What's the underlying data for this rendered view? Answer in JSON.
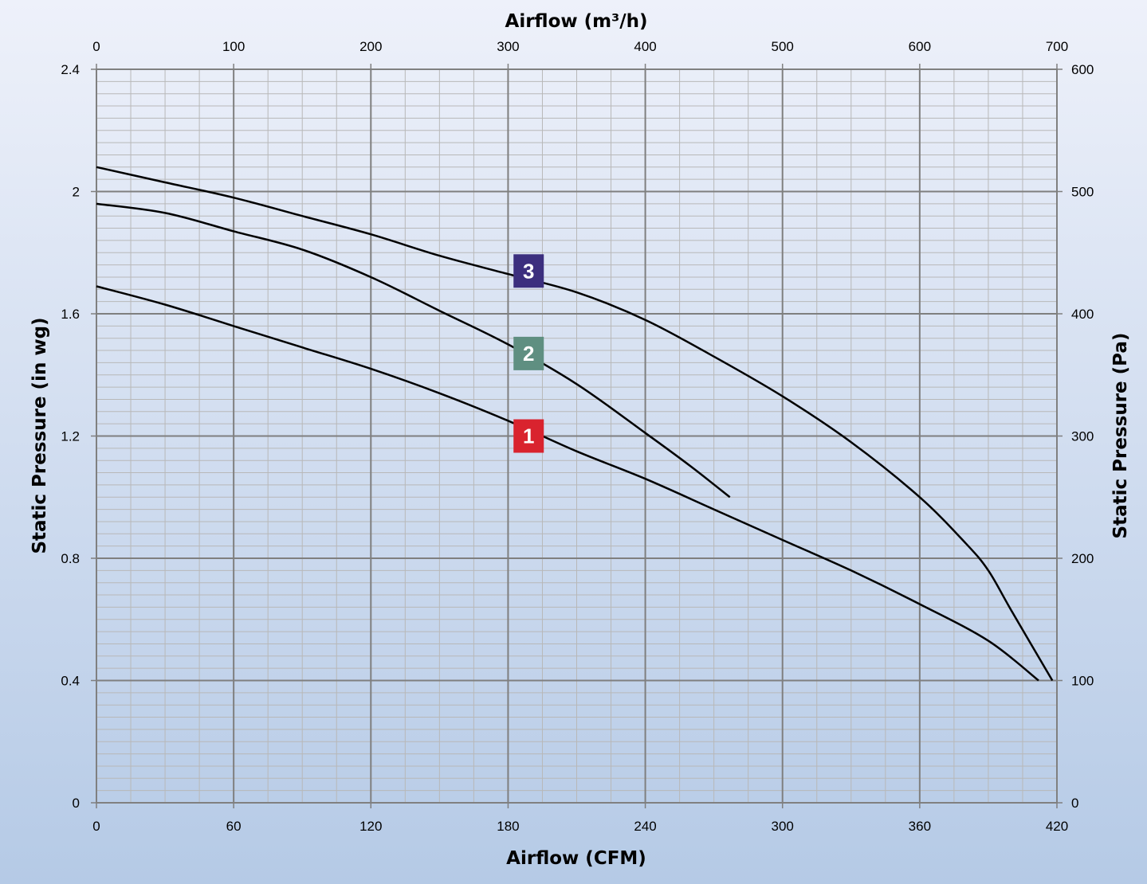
{
  "chart_data": {
    "type": "line",
    "title": "",
    "xlabel": "Airflow (CFM)",
    "x2label": "Airflow (m³/h)",
    "ylabel": "Static Pressure (in wg)",
    "y2label": "Static Pressure (Pa)",
    "xlim": [
      0,
      420
    ],
    "ylim": [
      0,
      2.4
    ],
    "x2lim": [
      0,
      700
    ],
    "y2lim": [
      0,
      600
    ],
    "xticks": [
      0,
      60,
      120,
      180,
      240,
      300,
      360,
      420
    ],
    "yticks": [
      0,
      0.4,
      0.8,
      1.2,
      1.6,
      2,
      2.4
    ],
    "x2ticks": [
      0,
      100,
      200,
      300,
      400,
      500,
      600,
      700
    ],
    "y2ticks": [
      0,
      100,
      200,
      300,
      400,
      500,
      600
    ],
    "grid": true,
    "line_color": "#000000",
    "background_colors": [
      "#eef1fa",
      "#b5cae6"
    ],
    "series": [
      {
        "label": "1",
        "badge_color": "#d9232e",
        "badge_at": [
          189,
          1.2
        ],
        "x": [
          0,
          30,
          60,
          90,
          120,
          150,
          180,
          210,
          240,
          270,
          300,
          330,
          360,
          390,
          412
        ],
        "y": [
          1.69,
          1.63,
          1.56,
          1.49,
          1.42,
          1.34,
          1.25,
          1.15,
          1.06,
          0.96,
          0.86,
          0.76,
          0.65,
          0.53,
          0.4
        ]
      },
      {
        "label": "2",
        "badge_color": "#5f8f81",
        "badge_at": [
          189,
          1.47
        ],
        "x": [
          0,
          30,
          60,
          90,
          120,
          150,
          180,
          210,
          240,
          260,
          277
        ],
        "y": [
          1.96,
          1.93,
          1.87,
          1.81,
          1.72,
          1.61,
          1.5,
          1.37,
          1.21,
          1.1,
          1.0
        ]
      },
      {
        "label": "3",
        "badge_color": "#3c2f7e",
        "badge_at": [
          189,
          1.74
        ],
        "x": [
          0,
          30,
          60,
          90,
          120,
          150,
          180,
          210,
          240,
          270,
          300,
          330,
          360,
          380,
          390,
          400,
          418
        ],
        "y": [
          2.08,
          2.03,
          1.98,
          1.92,
          1.86,
          1.79,
          1.73,
          1.67,
          1.58,
          1.46,
          1.33,
          1.18,
          1.0,
          0.85,
          0.76,
          0.63,
          0.4
        ]
      }
    ]
  }
}
